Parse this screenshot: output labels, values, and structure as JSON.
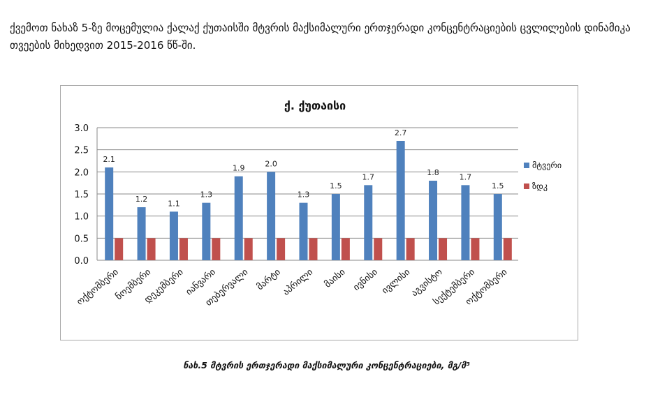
{
  "document": {
    "intro_text": "ქვემოთ ნახაზ 5-ზე მოცემულია ქალაქ ქუთაისში მტვრის მაქსიმალური ერთჯერადი კონცენტრაციების ცვლილების დინამიკა თვეების მიხედვით 2015-2016 წწ-ში.",
    "caption": "ნახ.5 მტვრის ერთჯერადი მაქსიმალური კონცენტრაციები, მგ/მ³"
  },
  "chart_data": {
    "type": "bar",
    "title": "ქ. ქუთაისი",
    "xlabel": "",
    "ylabel": "",
    "categories": [
      "ოქტომბერი",
      "ნოემბერი",
      "დეკემბერი",
      "იანვარი",
      "თებერვალი",
      "მარტი",
      "აპრილი",
      "მაისი",
      "ივნისი",
      "ივლისი",
      "აგვისტო",
      "სექტემბერი",
      "ოქტომბერი"
    ],
    "series": [
      {
        "name": "მტვერი",
        "color": "#4f81bd",
        "values": [
          2.1,
          1.2,
          1.1,
          1.3,
          1.9,
          2.0,
          1.3,
          1.5,
          1.7,
          2.7,
          1.8,
          1.7,
          1.5
        ],
        "labels": [
          "2.1",
          "1.2",
          "1.1",
          "1.3",
          "1.9",
          "2.0",
          "1.3",
          "1.5",
          "1.7",
          "2.7",
          "1.8",
          "1.7",
          "1.5"
        ]
      },
      {
        "name": "ზდკ",
        "color": "#c0504d",
        "values": [
          0.5,
          0.5,
          0.5,
          0.5,
          0.5,
          0.5,
          0.5,
          0.5,
          0.5,
          0.5,
          0.5,
          0.5,
          0.5
        ]
      }
    ],
    "ylim": [
      0,
      3.0
    ],
    "yticks": [
      "0.0",
      "0.5",
      "1.0",
      "1.5",
      "2.0",
      "2.5",
      "3.0"
    ],
    "grid": true,
    "legend_position": "right"
  }
}
